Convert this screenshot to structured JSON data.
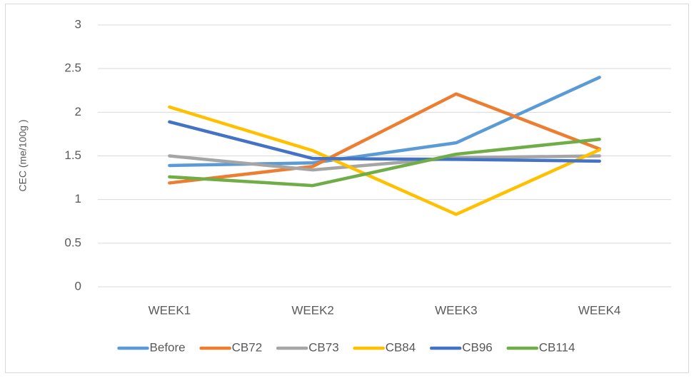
{
  "chart_data": {
    "type": "line",
    "y_label": "CEC (me/100g )",
    "categories": [
      "WEEK1",
      "WEEK2",
      "WEEK3",
      "WEEK4"
    ],
    "series": [
      {
        "name": "Before",
        "color": "#5b9bd5",
        "values": [
          1.39,
          1.42,
          1.65,
          2.4
        ]
      },
      {
        "name": "CB72",
        "color": "#ed7d31",
        "values": [
          1.19,
          1.38,
          2.21,
          1.58
        ]
      },
      {
        "name": "CB73",
        "color": "#a5a5a5",
        "values": [
          1.5,
          1.34,
          1.48,
          1.5
        ]
      },
      {
        "name": "CB84",
        "color": "#ffc000",
        "values": [
          2.06,
          1.56,
          0.83,
          1.57
        ]
      },
      {
        "name": "CB96",
        "color": "#4472c4",
        "values": [
          1.89,
          1.47,
          1.46,
          1.44
        ]
      },
      {
        "name": "CB114",
        "color": "#70ad47",
        "values": [
          1.26,
          1.16,
          1.52,
          1.69
        ]
      }
    ],
    "ylim": [
      0,
      3
    ],
    "yticks": [
      0,
      0.5,
      1,
      1.5,
      2,
      2.5,
      3
    ],
    "grid": true,
    "legend": "bottom"
  }
}
